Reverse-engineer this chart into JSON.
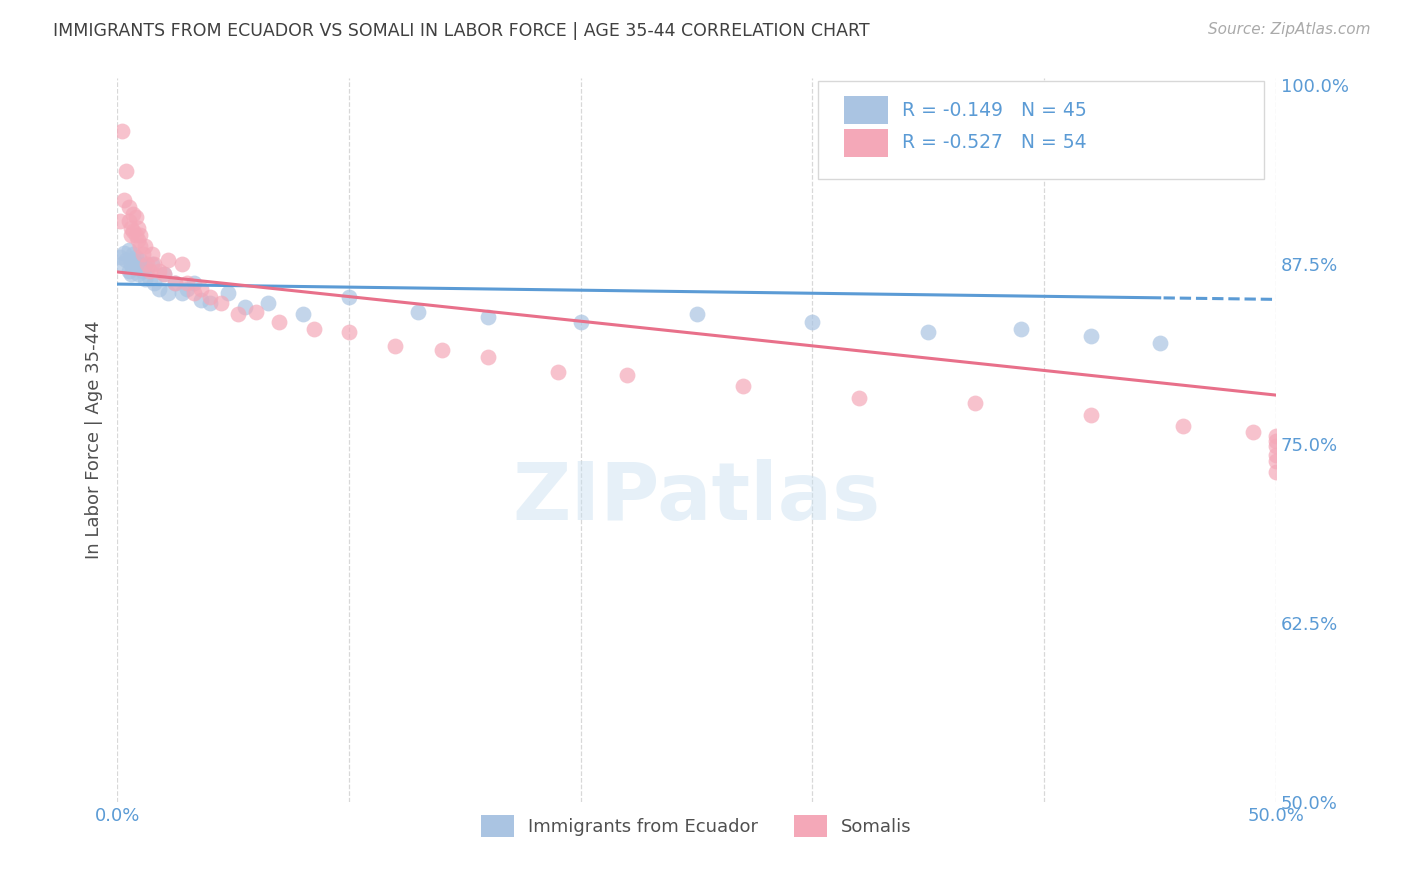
{
  "title": "IMMIGRANTS FROM ECUADOR VS SOMALI IN LABOR FORCE | AGE 35-44 CORRELATION CHART",
  "source": "Source: ZipAtlas.com",
  "ylabel": "In Labor Force | Age 35-44",
  "x_min": 0.0,
  "x_max": 0.5,
  "y_min": 0.5,
  "y_max": 1.005,
  "ecuador_R": -0.149,
  "ecuador_N": 45,
  "somali_R": -0.527,
  "somali_N": 54,
  "ecuador_color": "#aac4e2",
  "somali_color": "#f4a8b8",
  "ecuador_line_color": "#5b9bd5",
  "somali_line_color": "#e8708a",
  "background_color": "#ffffff",
  "grid_color": "#d8d8d8",
  "title_color": "#404040",
  "axis_label_color": "#505050",
  "tick_label_color": "#5b9bd5",
  "legend_text_color": "#5b9bd5",
  "watermark": "ZIPatlas",
  "ecuador_x": [
    0.001,
    0.002,
    0.003,
    0.004,
    0.005,
    0.005,
    0.006,
    0.006,
    0.007,
    0.007,
    0.008,
    0.008,
    0.009,
    0.009,
    0.01,
    0.01,
    0.011,
    0.012,
    0.013,
    0.014,
    0.015,
    0.016,
    0.018,
    0.02,
    0.022,
    0.025,
    0.028,
    0.03,
    0.033,
    0.036,
    0.04,
    0.048,
    0.055,
    0.065,
    0.08,
    0.1,
    0.13,
    0.16,
    0.2,
    0.25,
    0.3,
    0.35,
    0.39,
    0.42,
    0.45
  ],
  "ecuador_y": [
    0.88,
    0.875,
    0.883,
    0.878,
    0.87,
    0.885,
    0.875,
    0.868,
    0.882,
    0.877,
    0.874,
    0.88,
    0.872,
    0.868,
    0.878,
    0.875,
    0.87,
    0.865,
    0.872,
    0.865,
    0.875,
    0.862,
    0.858,
    0.868,
    0.855,
    0.862,
    0.855,
    0.858,
    0.862,
    0.85,
    0.848,
    0.855,
    0.845,
    0.848,
    0.84,
    0.852,
    0.842,
    0.838,
    0.835,
    0.84,
    0.835,
    0.828,
    0.83,
    0.825,
    0.82
  ],
  "somali_x": [
    0.001,
    0.002,
    0.003,
    0.004,
    0.005,
    0.005,
    0.006,
    0.006,
    0.007,
    0.007,
    0.008,
    0.008,
    0.009,
    0.009,
    0.01,
    0.01,
    0.011,
    0.012,
    0.013,
    0.014,
    0.015,
    0.016,
    0.018,
    0.02,
    0.022,
    0.025,
    0.028,
    0.03,
    0.033,
    0.036,
    0.04,
    0.045,
    0.052,
    0.06,
    0.07,
    0.085,
    0.1,
    0.12,
    0.14,
    0.16,
    0.19,
    0.22,
    0.27,
    0.32,
    0.37,
    0.42,
    0.46,
    0.49,
    0.5,
    0.5,
    0.5,
    0.5,
    0.5,
    0.5
  ],
  "somali_y": [
    0.905,
    0.968,
    0.92,
    0.94,
    0.915,
    0.905,
    0.9,
    0.895,
    0.91,
    0.898,
    0.908,
    0.895,
    0.9,
    0.892,
    0.895,
    0.888,
    0.882,
    0.888,
    0.875,
    0.87,
    0.882,
    0.875,
    0.87,
    0.868,
    0.878,
    0.862,
    0.875,
    0.862,
    0.855,
    0.858,
    0.852,
    0.848,
    0.84,
    0.842,
    0.835,
    0.83,
    0.828,
    0.818,
    0.815,
    0.81,
    0.8,
    0.798,
    0.79,
    0.782,
    0.778,
    0.77,
    0.762,
    0.758,
    0.755,
    0.752,
    0.748,
    0.742,
    0.738,
    0.73
  ]
}
